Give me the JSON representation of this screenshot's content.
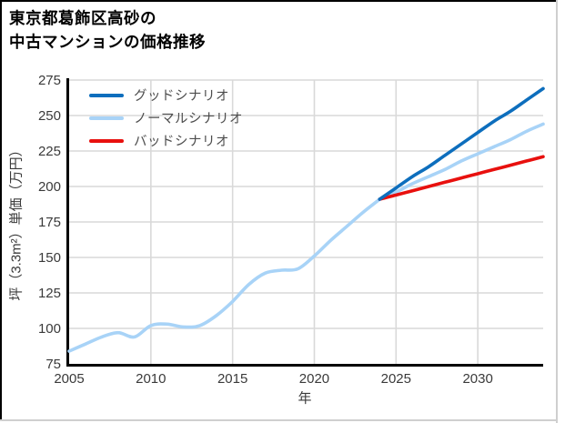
{
  "title": {
    "line1": "東京都葛飾区高砂の",
    "line2": "中古マンションの価格推移"
  },
  "chart_data": {
    "type": "line",
    "title": "東京都葛飾区高砂の中古マンションの価格推移",
    "xlabel": "年",
    "ylabel": "坪（3.3m²）単価（万円）",
    "xlim": [
      2005,
      2034
    ],
    "ylim": [
      75,
      275
    ],
    "xticks": [
      2005,
      2010,
      2015,
      2020,
      2025,
      2030
    ],
    "yticks": [
      75,
      100,
      125,
      150,
      175,
      200,
      225,
      250,
      275
    ],
    "grid": true,
    "legend_position": "upper-left",
    "colors": {
      "good": "#0d6ebd",
      "normal": "#a8d3f7",
      "bad": "#e8100e",
      "grid": "#d9d9d9",
      "axis": "#000000",
      "tick_text": "#3a3a3a"
    },
    "legend": [
      {
        "label": "グッドシナリオ",
        "color": "#0d6ebd"
      },
      {
        "label": "ノーマルシナリオ",
        "color": "#a8d3f7"
      },
      {
        "label": "バッドシナリオ",
        "color": "#e8100e"
      }
    ],
    "series": [
      {
        "role": "history",
        "label": "",
        "color": "#a8d3f7",
        "x": [
          2005,
          2006,
          2007,
          2008,
          2009,
          2010,
          2011,
          2012,
          2013,
          2014,
          2015,
          2016,
          2017,
          2018,
          2019,
          2020,
          2021,
          2022,
          2023,
          2024
        ],
        "y": [
          84,
          89,
          94,
          97,
          94,
          102,
          103,
          101,
          102,
          109,
          119,
          131,
          139,
          141,
          142,
          151,
          162,
          172,
          182,
          191
        ]
      },
      {
        "role": "normal",
        "label": "ノーマルシナリオ",
        "color": "#a8d3f7",
        "x": [
          2024,
          2025,
          2026,
          2027,
          2028,
          2029,
          2030,
          2031,
          2032,
          2033,
          2034
        ],
        "y": [
          191,
          196,
          202,
          207,
          212,
          218,
          223,
          228,
          233,
          239,
          244
        ]
      },
      {
        "role": "bad",
        "label": "バッドシナリオ",
        "color": "#e8100e",
        "x": [
          2024,
          2025,
          2026,
          2027,
          2028,
          2029,
          2030,
          2031,
          2032,
          2033,
          2034
        ],
        "y": [
          191,
          194,
          197,
          200,
          203,
          206,
          209,
          212,
          215,
          218,
          221
        ]
      },
      {
        "role": "good",
        "label": "グッドシナリオ",
        "color": "#0d6ebd",
        "x": [
          2024,
          2025,
          2026,
          2027,
          2028,
          2029,
          2030,
          2031,
          2032,
          2033,
          2034
        ],
        "y": [
          191,
          199,
          207,
          214,
          222,
          230,
          238,
          246,
          253,
          261,
          269
        ]
      }
    ]
  }
}
